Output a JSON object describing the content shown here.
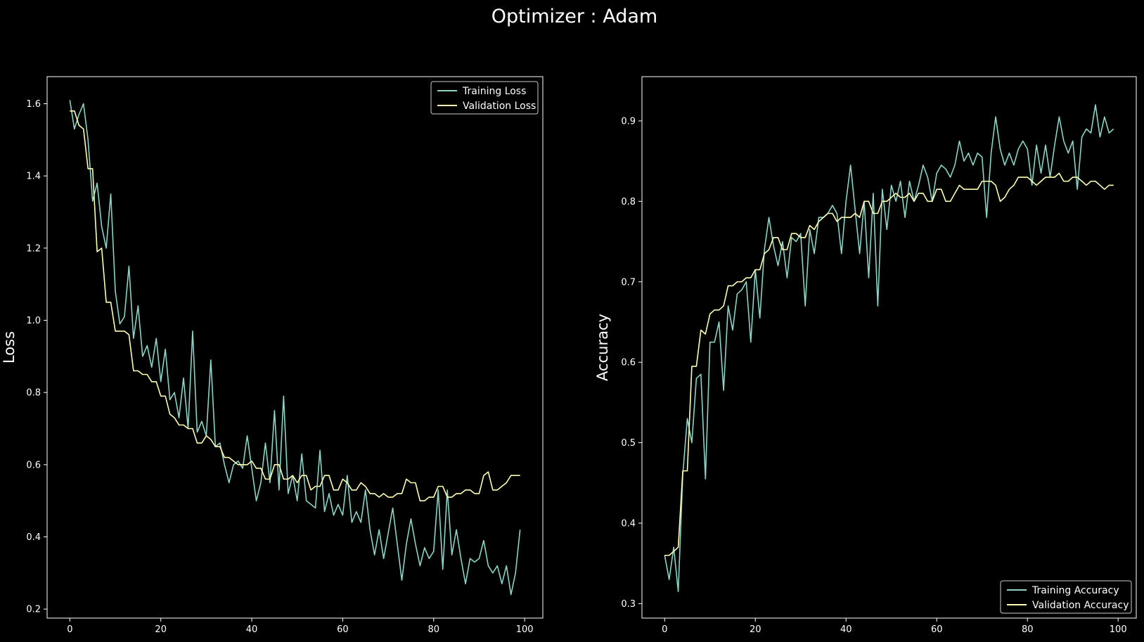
{
  "figure": {
    "title": "Optimizer : Adam",
    "background": "#000000",
    "foreground": "#ffffff"
  },
  "chart_data": [
    {
      "type": "line",
      "title": "",
      "xlabel": "",
      "ylabel": "Loss",
      "xlim": [
        -5,
        104
      ],
      "ylim": [
        0.175,
        1.675
      ],
      "xticks": [
        0,
        20,
        40,
        60,
        80,
        100
      ],
      "yticks": [
        0.2,
        0.4,
        0.6,
        0.8,
        1.0,
        1.2,
        1.4,
        1.6
      ],
      "grid": false,
      "legend": "top-right",
      "series": [
        {
          "name": "Training Loss",
          "color": "#8dd3c7",
          "values": [
            1.61,
            1.53,
            1.57,
            1.6,
            1.5,
            1.33,
            1.38,
            1.26,
            1.2,
            1.35,
            1.08,
            0.99,
            1.01,
            1.15,
            0.95,
            1.04,
            0.9,
            0.93,
            0.87,
            0.95,
            0.83,
            0.92,
            0.78,
            0.8,
            0.73,
            0.84,
            0.7,
            0.97,
            0.69,
            0.72,
            0.68,
            0.89,
            0.65,
            0.66,
            0.6,
            0.55,
            0.6,
            0.61,
            0.59,
            0.68,
            0.59,
            0.5,
            0.55,
            0.66,
            0.55,
            0.75,
            0.53,
            0.79,
            0.52,
            0.57,
            0.5,
            0.63,
            0.5,
            0.49,
            0.48,
            0.64,
            0.47,
            0.52,
            0.46,
            0.49,
            0.46,
            0.57,
            0.44,
            0.47,
            0.44,
            0.53,
            0.42,
            0.35,
            0.42,
            0.34,
            0.41,
            0.48,
            0.38,
            0.28,
            0.38,
            0.45,
            0.38,
            0.32,
            0.37,
            0.34,
            0.36,
            0.53,
            0.31,
            0.53,
            0.35,
            0.42,
            0.34,
            0.27,
            0.34,
            0.33,
            0.34,
            0.39,
            0.32,
            0.3,
            0.32,
            0.27,
            0.32,
            0.24,
            0.3,
            0.42
          ]
        },
        {
          "name": "Validation Loss",
          "color": "#ffffb3",
          "values": [
            1.58,
            1.58,
            1.54,
            1.53,
            1.42,
            1.42,
            1.19,
            1.2,
            1.05,
            1.05,
            0.97,
            0.97,
            0.97,
            0.96,
            0.86,
            0.86,
            0.85,
            0.85,
            0.83,
            0.83,
            0.79,
            0.79,
            0.74,
            0.73,
            0.71,
            0.71,
            0.7,
            0.7,
            0.66,
            0.66,
            0.68,
            0.67,
            0.65,
            0.65,
            0.62,
            0.62,
            0.61,
            0.6,
            0.6,
            0.6,
            0.61,
            0.59,
            0.59,
            0.56,
            0.56,
            0.6,
            0.6,
            0.56,
            0.56,
            0.57,
            0.55,
            0.57,
            0.57,
            0.53,
            0.54,
            0.54,
            0.57,
            0.57,
            0.53,
            0.53,
            0.56,
            0.55,
            0.53,
            0.53,
            0.55,
            0.54,
            0.52,
            0.52,
            0.51,
            0.52,
            0.51,
            0.51,
            0.52,
            0.52,
            0.56,
            0.55,
            0.55,
            0.5,
            0.5,
            0.51,
            0.51,
            0.54,
            0.54,
            0.51,
            0.51,
            0.52,
            0.52,
            0.53,
            0.53,
            0.52,
            0.52,
            0.57,
            0.58,
            0.53,
            0.53,
            0.54,
            0.55,
            0.57,
            0.57,
            0.57
          ]
        }
      ]
    },
    {
      "type": "line",
      "title": "",
      "xlabel": "",
      "ylabel": "Accuracy",
      "xlim": [
        -5,
        104
      ],
      "ylim": [
        0.282,
        0.955
      ],
      "xticks": [
        0,
        20,
        40,
        60,
        80,
        100
      ],
      "yticks": [
        0.3,
        0.4,
        0.5,
        0.6,
        0.7,
        0.8,
        0.9
      ],
      "grid": false,
      "legend": "bottom-right",
      "series": [
        {
          "name": "Training Accuracy",
          "color": "#8dd3c7",
          "values": [
            0.36,
            0.33,
            0.37,
            0.315,
            0.46,
            0.53,
            0.5,
            0.58,
            0.585,
            0.455,
            0.625,
            0.625,
            0.65,
            0.565,
            0.67,
            0.64,
            0.685,
            0.69,
            0.7,
            0.625,
            0.715,
            0.655,
            0.74,
            0.78,
            0.745,
            0.72,
            0.75,
            0.705,
            0.755,
            0.75,
            0.76,
            0.67,
            0.765,
            0.735,
            0.78,
            0.78,
            0.785,
            0.795,
            0.785,
            0.735,
            0.8,
            0.845,
            0.79,
            0.735,
            0.8,
            0.705,
            0.81,
            0.67,
            0.815,
            0.765,
            0.82,
            0.8,
            0.825,
            0.78,
            0.825,
            0.8,
            0.82,
            0.845,
            0.83,
            0.8,
            0.835,
            0.845,
            0.84,
            0.83,
            0.845,
            0.875,
            0.85,
            0.86,
            0.845,
            0.86,
            0.855,
            0.78,
            0.86,
            0.905,
            0.865,
            0.845,
            0.86,
            0.845,
            0.865,
            0.875,
            0.865,
            0.82,
            0.87,
            0.835,
            0.87,
            0.83,
            0.87,
            0.905,
            0.875,
            0.86,
            0.875,
            0.815,
            0.88,
            0.89,
            0.885,
            0.92,
            0.88,
            0.905,
            0.885,
            0.89
          ]
        },
        {
          "name": "Validation Accuracy",
          "color": "#ffffb3",
          "values": [
            0.36,
            0.36,
            0.365,
            0.37,
            0.465,
            0.465,
            0.595,
            0.595,
            0.64,
            0.635,
            0.66,
            0.665,
            0.665,
            0.67,
            0.695,
            0.695,
            0.7,
            0.7,
            0.705,
            0.705,
            0.715,
            0.715,
            0.735,
            0.74,
            0.755,
            0.755,
            0.74,
            0.74,
            0.76,
            0.76,
            0.755,
            0.755,
            0.77,
            0.765,
            0.775,
            0.78,
            0.785,
            0.785,
            0.775,
            0.78,
            0.78,
            0.78,
            0.785,
            0.78,
            0.8,
            0.8,
            0.785,
            0.785,
            0.8,
            0.8,
            0.805,
            0.81,
            0.805,
            0.805,
            0.81,
            0.8,
            0.81,
            0.81,
            0.8,
            0.8,
            0.815,
            0.815,
            0.8,
            0.8,
            0.81,
            0.82,
            0.815,
            0.815,
            0.815,
            0.815,
            0.825,
            0.825,
            0.825,
            0.82,
            0.8,
            0.805,
            0.815,
            0.82,
            0.83,
            0.83,
            0.83,
            0.825,
            0.82,
            0.825,
            0.83,
            0.83,
            0.83,
            0.835,
            0.825,
            0.825,
            0.83,
            0.83,
            0.825,
            0.82,
            0.825,
            0.825,
            0.82,
            0.815,
            0.82,
            0.82
          ]
        }
      ]
    }
  ]
}
